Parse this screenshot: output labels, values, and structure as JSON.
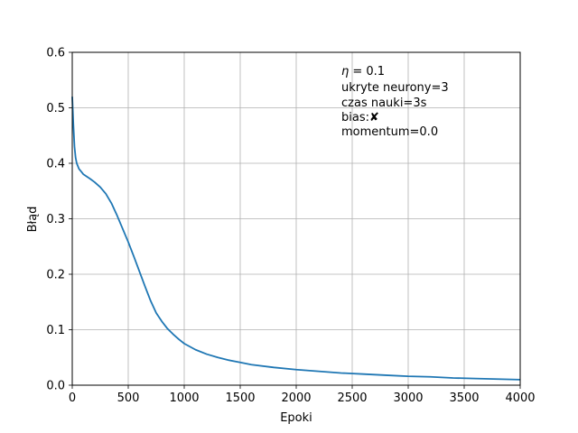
{
  "chart_data": {
    "type": "line",
    "xlabel": "Epoki",
    "ylabel": "Błąd",
    "xlim": [
      0,
      4000
    ],
    "ylim": [
      0,
      0.6
    ],
    "xticks": [
      0,
      500,
      1000,
      1500,
      2000,
      2500,
      3000,
      3500,
      4000
    ],
    "yticks": [
      0.0,
      0.1,
      0.2,
      0.3,
      0.4,
      0.5,
      0.6
    ],
    "grid": true,
    "color": "#1f77b4",
    "annotations": {
      "eta_symbol": "η",
      "eta_value": " = 0.1",
      "lines": [
        "ukryte neurony=3",
        "czas nauki=3s",
        "bias:✘",
        "momentum=0.0"
      ]
    },
    "series": [
      {
        "x": [
          0,
          10,
          20,
          30,
          40,
          60,
          80,
          100,
          130,
          160,
          200,
          250,
          300,
          350,
          400,
          450,
          500,
          550,
          600,
          650,
          700,
          750,
          800,
          850,
          900,
          950,
          1000,
          1100,
          1200,
          1300,
          1400,
          1500,
          1600,
          1800,
          2000,
          2200,
          2400,
          2600,
          2800,
          3000,
          3200,
          3400,
          3600,
          3800,
          4000
        ],
        "y": [
          0.52,
          0.47,
          0.43,
          0.41,
          0.4,
          0.39,
          0.385,
          0.38,
          0.376,
          0.372,
          0.366,
          0.357,
          0.345,
          0.328,
          0.306,
          0.282,
          0.258,
          0.232,
          0.205,
          0.178,
          0.152,
          0.13,
          0.115,
          0.102,
          0.092,
          0.083,
          0.075,
          0.064,
          0.056,
          0.05,
          0.045,
          0.041,
          0.037,
          0.032,
          0.028,
          0.025,
          0.022,
          0.02,
          0.018,
          0.016,
          0.015,
          0.013,
          0.012,
          0.011,
          0.01
        ]
      }
    ]
  }
}
